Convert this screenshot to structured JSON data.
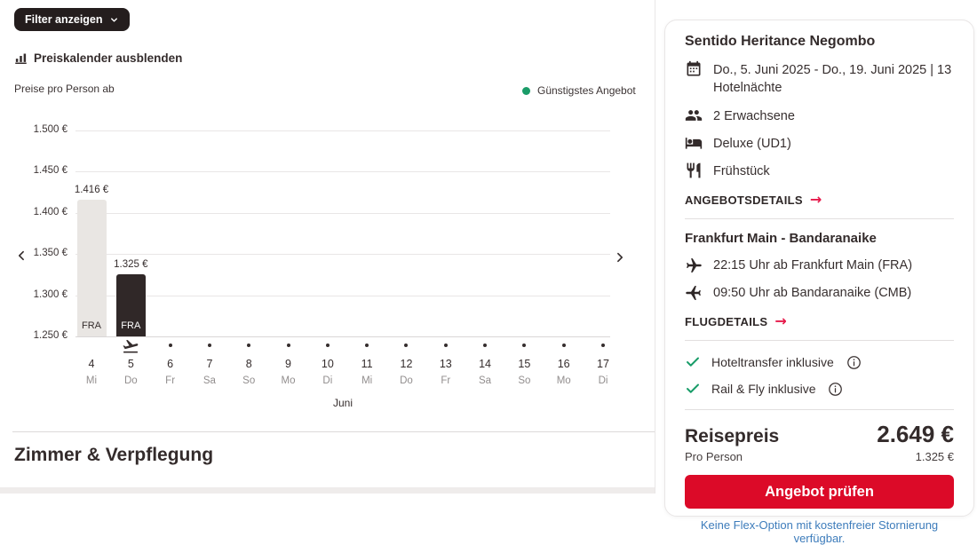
{
  "filter": {
    "label": "Filter anzeigen"
  },
  "section_heading": "Zimmer & Verpflegung",
  "price_calendar": {
    "toggle_label": "Preiskalender ausblenden",
    "colors": {
      "cheapest_green": "#1a9c68",
      "bar_default": "#e9e6e3",
      "bar_highlight": "#302828"
    },
    "chart_data": {
      "type": "bar",
      "title": "Preise pro Person ab",
      "legend": {
        "label": "Günstigstes Angebot",
        "position": "top-right"
      },
      "ylim": [
        1250,
        1500
      ],
      "yticks": [
        {
          "value": 1250,
          "label": "1.250 €"
        },
        {
          "value": 1300,
          "label": "1.300 €"
        },
        {
          "value": 1350,
          "label": "1.350 €"
        },
        {
          "value": 1400,
          "label": "1.400 €"
        },
        {
          "value": 1450,
          "label": "1.450 €"
        },
        {
          "value": 1500,
          "label": "1.500 €"
        }
      ],
      "month_label": "Juni",
      "categories": [
        {
          "day": "4",
          "weekday": "Mi",
          "marker": "none"
        },
        {
          "day": "5",
          "weekday": "Do",
          "marker": "plane"
        },
        {
          "day": "6",
          "weekday": "Fr",
          "marker": "dot"
        },
        {
          "day": "7",
          "weekday": "Sa",
          "marker": "dot"
        },
        {
          "day": "8",
          "weekday": "So",
          "marker": "dot"
        },
        {
          "day": "9",
          "weekday": "Mo",
          "marker": "dot"
        },
        {
          "day": "10",
          "weekday": "Di",
          "marker": "dot"
        },
        {
          "day": "11",
          "weekday": "Mi",
          "marker": "dot"
        },
        {
          "day": "12",
          "weekday": "Do",
          "marker": "dot"
        },
        {
          "day": "13",
          "weekday": "Fr",
          "marker": "dot"
        },
        {
          "day": "14",
          "weekday": "Sa",
          "marker": "dot"
        },
        {
          "day": "15",
          "weekday": "So",
          "marker": "dot"
        },
        {
          "day": "16",
          "weekday": "Mo",
          "marker": "dot"
        },
        {
          "day": "17",
          "weekday": "Di",
          "marker": "dot"
        }
      ],
      "bars": [
        {
          "day": "4",
          "value": 1416,
          "price_label": "1.416 €",
          "airport": "FRA",
          "highlight": false
        },
        {
          "day": "5",
          "value": 1325,
          "price_label": "1.325 €",
          "airport": "FRA",
          "highlight": true
        }
      ],
      "grid": true
    }
  },
  "booking_card": {
    "hotel_name": "Sentido Heritance Negombo",
    "details": [
      {
        "icon": "calendar-icon",
        "text": "Do., 5. Juni 2025 - Do., 19. Juni 2025 | 13 Hotelnächte"
      },
      {
        "icon": "travelers-icon",
        "text": "2 Erwachsene"
      },
      {
        "icon": "bed-icon",
        "text": "Deluxe (UD1)"
      },
      {
        "icon": "cutlery-icon",
        "text": "Frühstück"
      }
    ],
    "offer_details_label": "ANGEBOTSDETAILS",
    "flight": {
      "route": "Frankfurt Main - Bandaranaike",
      "outbound": "22:15 Uhr ab Frankfurt Main (FRA)",
      "return": "09:50 Uhr ab Bandaranaike (CMB)",
      "details_label": "FLUGDETAILS"
    },
    "inclusives": [
      {
        "text": "Hoteltransfer inklusive"
      },
      {
        "text": "Rail & Fly inklusive"
      }
    ],
    "price": {
      "label": "Reisepreis",
      "total": "2.649 €",
      "per_person_label": "Pro Person",
      "per_person": "1.325 €"
    },
    "cta_label": "Angebot prüfen",
    "flex_note": "Keine Flex-Option mit kostenfreier Stornierung verfügbar.",
    "colors": {
      "button_red": "#dc0a28",
      "arrow_red": "#e6194a",
      "link_blue": "#3d7cbb",
      "check_green": "#189c68"
    }
  }
}
